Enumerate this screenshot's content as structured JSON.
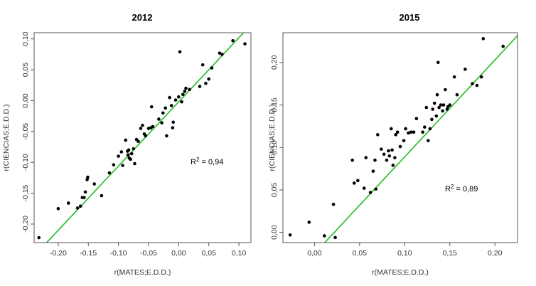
{
  "chart_data": [
    {
      "type": "scatter",
      "title": "2012",
      "xlabel": "r(MATES;E.D.D.)",
      "ylabel": "r(CIENCIAS;E.D.D.)",
      "annotation": {
        "text": "R² = 0,94",
        "base": "R",
        "sup": "2",
        "rest": " = 0,94"
      },
      "xlim": [
        -0.24,
        0.12
      ],
      "ylim": [
        -0.23,
        0.11
      ],
      "xticks": [
        -0.2,
        -0.15,
        -0.1,
        -0.05,
        0.0,
        0.05,
        0.1
      ],
      "xtick_labels": [
        "-0,20",
        "-0,15",
        "-0,10",
        "-0,05",
        "0,00",
        "0,05",
        "0,10"
      ],
      "yticks": [
        -0.2,
        -0.15,
        -0.1,
        -0.05,
        0.0,
        0.05,
        0.1
      ],
      "ytick_labels": [
        "-0,20",
        "-0,15",
        "-0,10",
        "-0,05",
        "0,00",
        "0,05",
        "0,10"
      ],
      "fit_line": {
        "slope": 1.04,
        "intercept": -0.002,
        "color": "#22bb22"
      },
      "point_color": "#000000",
      "points": [
        [
          -0.232,
          -0.222
        ],
        [
          -0.2,
          -0.175
        ],
        [
          -0.183,
          -0.166
        ],
        [
          -0.168,
          -0.174
        ],
        [
          -0.163,
          -0.171
        ],
        [
          -0.16,
          -0.157
        ],
        [
          -0.155,
          -0.148
        ],
        [
          -0.157,
          -0.157
        ],
        [
          -0.152,
          -0.128
        ],
        [
          -0.151,
          -0.124
        ],
        [
          -0.14,
          -0.135
        ],
        [
          -0.128,
          -0.154
        ],
        [
          -0.115,
          -0.117
        ],
        [
          -0.108,
          -0.104
        ],
        [
          -0.1,
          -0.09
        ],
        [
          -0.095,
          -0.083
        ],
        [
          -0.093,
          -0.105
        ],
        [
          -0.088,
          -0.064
        ],
        [
          -0.085,
          -0.082
        ],
        [
          -0.084,
          -0.088
        ],
        [
          -0.083,
          -0.08
        ],
        [
          -0.082,
          -0.093
        ],
        [
          -0.08,
          -0.095
        ],
        [
          -0.078,
          -0.086
        ],
        [
          -0.075,
          -0.078
        ],
        [
          -0.073,
          -0.102
        ],
        [
          -0.07,
          -0.063
        ],
        [
          -0.067,
          -0.066
        ],
        [
          -0.063,
          -0.045
        ],
        [
          -0.06,
          -0.04
        ],
        [
          -0.057,
          -0.054
        ],
        [
          -0.055,
          -0.057
        ],
        [
          -0.05,
          -0.045
        ],
        [
          -0.046,
          -0.044
        ],
        [
          -0.045,
          -0.01
        ],
        [
          -0.043,
          -0.042
        ],
        [
          -0.033,
          -0.03
        ],
        [
          -0.028,
          -0.036
        ],
        [
          -0.026,
          -0.02
        ],
        [
          -0.022,
          -0.012
        ],
        [
          -0.02,
          -0.057
        ],
        [
          -0.015,
          0.005
        ],
        [
          -0.012,
          -0.008
        ],
        [
          -0.01,
          -0.044
        ],
        [
          -0.009,
          -0.035
        ],
        [
          -0.005,
          0.001
        ],
        [
          0.0,
          0.006
        ],
        [
          0.002,
          0.079
        ],
        [
          0.005,
          -0.002
        ],
        [
          0.007,
          0.01
        ],
        [
          0.01,
          0.015
        ],
        [
          0.012,
          0.02
        ],
        [
          0.018,
          0.018
        ],
        [
          0.035,
          0.023
        ],
        [
          0.04,
          0.058
        ],
        [
          0.045,
          0.028
        ],
        [
          0.05,
          0.035
        ],
        [
          0.055,
          0.053
        ],
        [
          0.068,
          0.077
        ],
        [
          0.072,
          0.075
        ],
        [
          0.09,
          0.097
        ],
        [
          0.11,
          0.092
        ]
      ]
    },
    {
      "type": "scatter",
      "title": "2015",
      "xlabel": "r(MATES;E.D.D.)",
      "ylabel": "r(CIENCIAS;E.D.D.)",
      "annotation": {
        "text": "R² = 0,89",
        "base": "R",
        "sup": "2",
        "rest": " = 0,89"
      },
      "xlim": [
        -0.035,
        0.225
      ],
      "ylim": [
        -0.012,
        0.235
      ],
      "xticks": [
        0.0,
        0.05,
        0.1,
        0.15,
        0.2
      ],
      "xtick_labels": [
        "0,00",
        "0,05",
        "0,10",
        "0,15",
        "0,20"
      ],
      "yticks": [
        0.0,
        0.05,
        0.1,
        0.15,
        0.2
      ],
      "ytick_labels": [
        "0,00",
        "0,05",
        "0,10",
        "0,15",
        "0,20"
      ],
      "fit_line": {
        "slope": 1.14,
        "intercept": -0.025,
        "color": "#22bb22"
      },
      "point_color": "#000000",
      "points": [
        [
          -0.027,
          -0.003
        ],
        [
          -0.006,
          0.012
        ],
        [
          0.011,
          -0.004
        ],
        [
          0.021,
          0.033
        ],
        [
          0.023,
          -0.006
        ],
        [
          0.042,
          0.085
        ],
        [
          0.044,
          0.058
        ],
        [
          0.048,
          0.061
        ],
        [
          0.055,
          0.052
        ],
        [
          0.057,
          0.088
        ],
        [
          0.062,
          0.047
        ],
        [
          0.065,
          0.072
        ],
        [
          0.067,
          0.085
        ],
        [
          0.068,
          0.051
        ],
        [
          0.07,
          0.115
        ],
        [
          0.074,
          0.098
        ],
        [
          0.077,
          0.092
        ],
        [
          0.08,
          0.085
        ],
        [
          0.082,
          0.096
        ],
        [
          0.083,
          0.09
        ],
        [
          0.085,
          0.122
        ],
        [
          0.086,
          0.097
        ],
        [
          0.087,
          0.079
        ],
        [
          0.089,
          0.088
        ],
        [
          0.09,
          0.115
        ],
        [
          0.092,
          0.118
        ],
        [
          0.095,
          0.101
        ],
        [
          0.099,
          0.108
        ],
        [
          0.101,
          0.122
        ],
        [
          0.104,
          0.117
        ],
        [
          0.107,
          0.118
        ],
        [
          0.11,
          0.118
        ],
        [
          0.113,
          0.134
        ],
        [
          0.12,
          0.118
        ],
        [
          0.122,
          0.124
        ],
        [
          0.124,
          0.147
        ],
        [
          0.126,
          0.108
        ],
        [
          0.128,
          0.122
        ],
        [
          0.13,
          0.133
        ],
        [
          0.131,
          0.145
        ],
        [
          0.133,
          0.152
        ],
        [
          0.135,
          0.137
        ],
        [
          0.136,
          0.162
        ],
        [
          0.137,
          0.2
        ],
        [
          0.138,
          0.147
        ],
        [
          0.14,
          0.15
        ],
        [
          0.142,
          0.143
        ],
        [
          0.143,
          0.15
        ],
        [
          0.145,
          0.168
        ],
        [
          0.147,
          0.145
        ],
        [
          0.148,
          0.148
        ],
        [
          0.15,
          0.15
        ],
        [
          0.155,
          0.183
        ],
        [
          0.158,
          0.162
        ],
        [
          0.167,
          0.192
        ],
        [
          0.175,
          0.175
        ],
        [
          0.18,
          0.173
        ],
        [
          0.185,
          0.183
        ],
        [
          0.187,
          0.228
        ],
        [
          0.209,
          0.219
        ]
      ]
    }
  ]
}
